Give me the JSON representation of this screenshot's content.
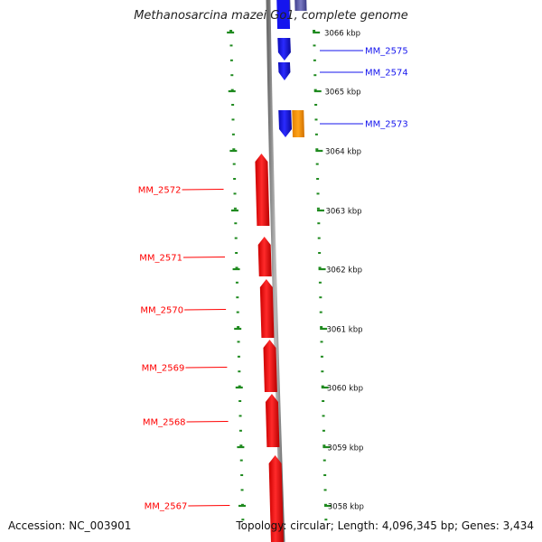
{
  "title": "Methanosarcina mazei Go1, complete genome",
  "accession": {
    "label": "Accession:",
    "value": "NC_003901"
  },
  "footer_right": {
    "topology_label": "Topology:",
    "topology": "circular",
    "length_label": "Length:",
    "length": "4,096,345 bp",
    "genes_label": "Genes:",
    "genes": "3,434"
  },
  "ticks": [
    {
      "kbp": 3066,
      "label": "3066 kbp"
    },
    {
      "kbp": 3065,
      "label": "3065 kbp"
    },
    {
      "kbp": 3064,
      "label": "3064 kbp"
    },
    {
      "kbp": 3063,
      "label": "3063 kbp"
    },
    {
      "kbp": 3062,
      "label": "3062 kbp"
    },
    {
      "kbp": 3061,
      "label": "3061 kbp"
    },
    {
      "kbp": 3060,
      "label": "3060 kbp"
    },
    {
      "kbp": 3059,
      "label": "3059 kbp"
    },
    {
      "kbp": 3058,
      "label": "3058 kbp"
    }
  ],
  "genes": [
    {
      "label": "MM_2575",
      "strand": "forward",
      "color": "#1515ee"
    },
    {
      "label": "MM_2574",
      "strand": "forward",
      "color": "#1515ee"
    },
    {
      "label": "MM_2573",
      "strand": "forward",
      "color": "#1515ee"
    },
    {
      "label": "MM_2572",
      "strand": "reverse",
      "color": "#ff0000"
    },
    {
      "label": "MM_2571",
      "strand": "reverse",
      "color": "#ff0000"
    },
    {
      "label": "MM_2570",
      "strand": "reverse",
      "color": "#ff0000"
    },
    {
      "label": "MM_2569",
      "strand": "reverse",
      "color": "#ff0000"
    },
    {
      "label": "MM_2568",
      "strand": "reverse",
      "color": "#ff0000"
    },
    {
      "label": "MM_2567",
      "strand": "reverse",
      "color": "#ff0000"
    }
  ],
  "colors": {
    "forward_gene": "#1515ee",
    "reverse_gene": "#ff0000",
    "other_feature": "#ff9a00",
    "faded_feature": "#5a5aa8",
    "backbone": "#8a8a8a",
    "tick": "#1f8a1f"
  }
}
